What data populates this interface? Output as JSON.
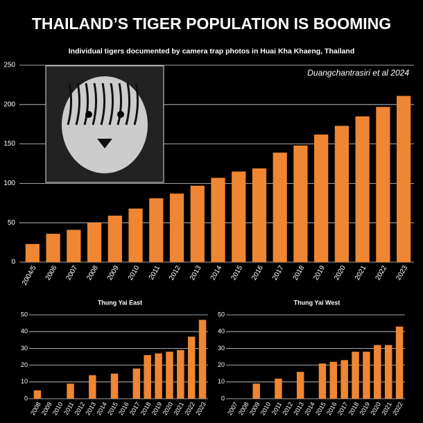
{
  "chart_data": [
    {
      "type": "bar",
      "title": "THAILAND’S TIGER POPULATION IS BOOMING",
      "subtitle": "Individual tigers documented by camera trap photos in Huai Kha Khaeng, Thailand",
      "annotation": "Duangchantrasiri et al 2024",
      "categories": [
        "2004/5",
        "2006",
        "2007",
        "2008",
        "2009",
        "2010",
        "2011",
        "2012",
        "2013",
        "2014",
        "2015",
        "2016",
        "2017",
        "2018",
        "2019",
        "2020",
        "2021",
        "2022",
        "2023"
      ],
      "values": [
        23,
        36,
        41,
        50,
        59,
        68,
        81,
        87,
        97,
        107,
        115,
        119,
        139,
        148,
        162,
        173,
        185,
        197,
        211
      ],
      "color": "#ef8633",
      "ylim": [
        0,
        250
      ],
      "yticks": [
        0,
        50,
        100,
        150,
        200,
        250
      ],
      "grid": true
    },
    {
      "type": "bar",
      "title": "Thung Yai East",
      "categories": [
        "2008",
        "2009",
        "2010",
        "2011",
        "2012",
        "2013",
        "2014",
        "2015",
        "2016",
        "2017",
        "2018",
        "2019",
        "2020",
        "2021",
        "2022",
        "2023"
      ],
      "values": [
        5,
        null,
        null,
        9,
        null,
        14,
        null,
        15,
        null,
        18,
        26,
        27,
        28,
        29,
        37,
        47
      ],
      "color": "#ef8633",
      "ylim": [
        0,
        50
      ],
      "yticks": [
        0,
        10,
        20,
        30,
        40,
        50
      ],
      "grid": true
    },
    {
      "type": "bar",
      "title": "Thung Yai West",
      "categories": [
        "2007",
        "2008",
        "2009",
        "2010",
        "2011",
        "2012",
        "2013",
        "2014",
        "2015",
        "2016",
        "2017",
        "2018",
        "2019",
        "2020",
        "2021",
        "2022"
      ],
      "values": [
        null,
        null,
        9,
        null,
        12,
        null,
        16,
        null,
        21,
        22,
        23,
        28,
        28,
        32,
        32,
        43
      ],
      "color": "#ef8633",
      "ylim": [
        0,
        50
      ],
      "yticks": [
        0,
        10,
        20,
        30,
        40,
        50
      ],
      "grid": true
    }
  ]
}
